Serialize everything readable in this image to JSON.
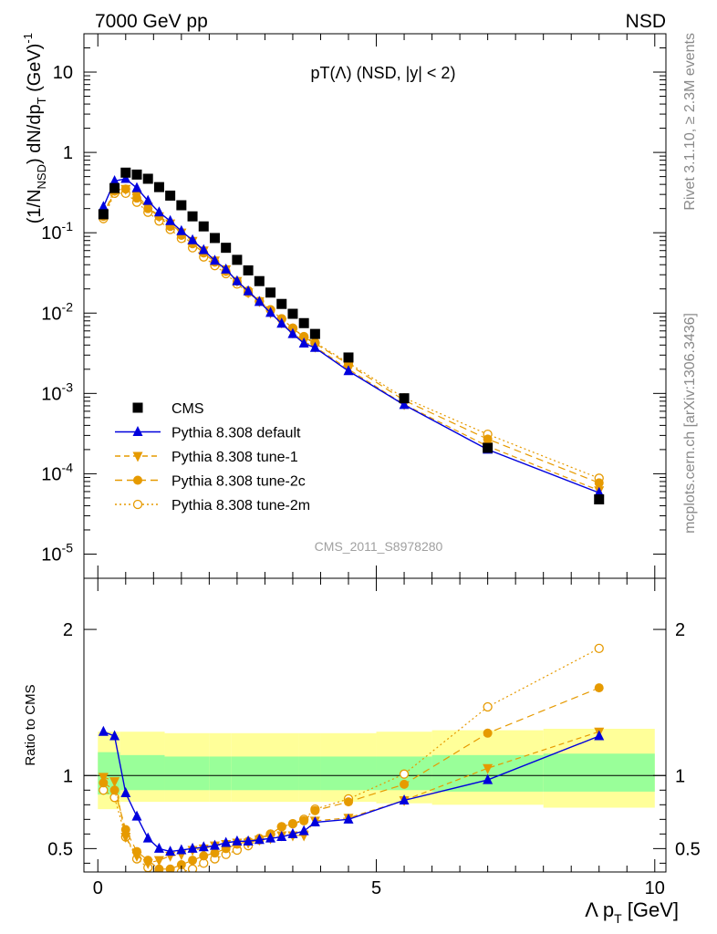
{
  "header": {
    "left": "7000 GeV pp",
    "right": "NSD",
    "plot_title": "pT(Λ) (NSD, |y| < 2)"
  },
  "side_text": {
    "rivet": "Rivet 3.1.10, ≥ 2.3M events",
    "mcplots": "mcplots.cern.ch [arXiv:1306.3436]"
  },
  "watermark": "CMS_2011_S8978280",
  "colors": {
    "cms": "#000000",
    "default": "#0000dd",
    "tunes": "#e69a00",
    "band_inner": "#99ff99",
    "band_outer": "#ffff99"
  },
  "chart_data": [
    {
      "type": "scatter",
      "title": "pT(Λ) (NSD, |y| < 2)",
      "xlabel": "Λ p_T [GeV]",
      "ylabel": "(1/N_NSD) dN/dp_T (GeV)^-1",
      "xlim": [
        -0.25,
        10.2
      ],
      "ylim": [
        5e-06,
        30
      ],
      "yscale": "log",
      "y_ticks": [
        "10^-5",
        "10^-4",
        "10^-3",
        "10^-2",
        "10^-1",
        "1",
        "10"
      ],
      "x_ticks": [
        "0",
        "5",
        "10"
      ],
      "legend_placement": "lower-left",
      "x": [
        0.1,
        0.3,
        0.5,
        0.7,
        0.9,
        1.1,
        1.3,
        1.5,
        1.7,
        1.9,
        2.1,
        2.3,
        2.5,
        2.7,
        2.9,
        3.1,
        3.3,
        3.5,
        3.7,
        3.9,
        4.5,
        5.5,
        7.0,
        9.0
      ],
      "series": [
        {
          "name": "CMS",
          "marker": "square",
          "values": [
            0.17,
            0.36,
            0.56,
            0.53,
            0.47,
            0.37,
            0.29,
            0.22,
            0.16,
            0.12,
            0.086,
            0.065,
            0.046,
            0.034,
            0.025,
            0.018,
            0.013,
            0.0098,
            0.0075,
            0.0055,
            0.0028,
            0.00087,
            0.00021,
            4.8e-05
          ]
        },
        {
          "name": "Pythia 8.308 default",
          "marker": "triangle-up",
          "values": [
            0.21,
            0.44,
            0.47,
            0.36,
            0.25,
            0.18,
            0.14,
            0.105,
            0.081,
            0.061,
            0.045,
            0.035,
            0.025,
            0.0187,
            0.0138,
            0.0101,
            0.0074,
            0.0055,
            0.0042,
            0.0037,
            0.0019,
            0.00072,
            0.0002,
            5.8e-05
          ]
        },
        {
          "name": "Pythia 8.308 tune-1",
          "marker": "triangle-down",
          "values": [
            0.17,
            0.34,
            0.35,
            0.29,
            0.21,
            0.16,
            0.13,
            0.1,
            0.079,
            0.06,
            0.045,
            0.035,
            0.025,
            0.018,
            0.014,
            0.0101,
            0.0076,
            0.0057,
            0.0044,
            0.0038,
            0.002,
            0.00073,
            0.00022,
            6.2e-05
          ]
        },
        {
          "name": "Pythia 8.308 tune-2c",
          "marker": "circle",
          "values": [
            0.16,
            0.33,
            0.35,
            0.27,
            0.2,
            0.16,
            0.12,
            0.093,
            0.073,
            0.056,
            0.043,
            0.033,
            0.025,
            0.019,
            0.014,
            0.011,
            0.0085,
            0.0065,
            0.005,
            0.0042,
            0.0023,
            0.00082,
            0.00027,
            7.7e-05
          ]
        },
        {
          "name": "Pythia 8.308 tune-2m",
          "marker": "open-circle",
          "values": [
            0.15,
            0.31,
            0.31,
            0.24,
            0.18,
            0.14,
            0.11,
            0.085,
            0.065,
            0.05,
            0.039,
            0.031,
            0.023,
            0.018,
            0.014,
            0.011,
            0.0085,
            0.0065,
            0.0051,
            0.0043,
            0.0024,
            0.00088,
            0.00031,
            8.8e-05
          ]
        }
      ]
    },
    {
      "type": "line",
      "ylabel": "Ratio to CMS",
      "xlim": [
        -0.25,
        10.2
      ],
      "ylim": [
        0.34,
        2.35
      ],
      "y_ticks": [
        "0.5",
        "1",
        "2"
      ],
      "band_edges": [
        0,
        0.4,
        1.2,
        2.0,
        2.4,
        3.6,
        4.0,
        5.0,
        6.0,
        8.0,
        10.0
      ],
      "band_inner": [
        [
          0.87,
          1.16
        ],
        [
          0.9,
          1.14
        ],
        [
          0.9,
          1.13
        ],
        [
          0.9,
          1.13
        ],
        [
          0.9,
          1.13
        ],
        [
          0.9,
          1.13
        ],
        [
          0.9,
          1.13
        ],
        [
          0.9,
          1.13
        ],
        [
          0.89,
          1.14
        ],
        [
          0.89,
          1.15
        ]
      ],
      "band_outer": [
        [
          0.77,
          1.3
        ],
        [
          0.82,
          1.3
        ],
        [
          0.82,
          1.29
        ],
        [
          0.82,
          1.29
        ],
        [
          0.82,
          1.29
        ],
        [
          0.82,
          1.29
        ],
        [
          0.82,
          1.29
        ],
        [
          0.81,
          1.3
        ],
        [
          0.8,
          1.31
        ],
        [
          0.78,
          1.32
        ]
      ],
      "x": [
        0.1,
        0.3,
        0.5,
        0.7,
        0.9,
        1.1,
        1.3,
        1.5,
        1.7,
        1.9,
        2.1,
        2.3,
        2.5,
        2.7,
        2.9,
        3.1,
        3.3,
        3.5,
        3.7,
        3.9,
        4.5,
        5.5,
        7.0,
        9.0
      ],
      "series": [
        {
          "name": "Pythia 8.308 default",
          "values": [
            1.3,
            1.27,
            0.88,
            0.72,
            0.57,
            0.5,
            0.48,
            0.49,
            0.5,
            0.51,
            0.52,
            0.54,
            0.55,
            0.55,
            0.56,
            0.57,
            0.58,
            0.6,
            0.62,
            0.68,
            0.7,
            0.83,
            0.97,
            1.27
          ]
        },
        {
          "name": "Pythia 8.308 tune-1",
          "values": [
            0.99,
            0.96,
            0.58,
            0.45,
            0.4,
            0.42,
            0.45,
            0.46,
            0.49,
            0.5,
            0.52,
            0.53,
            0.54,
            0.54,
            0.56,
            0.57,
            0.59,
            0.59,
            0.59,
            0.69,
            0.71,
            0.83,
            1.05,
            1.3
          ]
        },
        {
          "name": "Pythia 8.308 tune-2c",
          "values": [
            0.95,
            0.9,
            0.63,
            0.48,
            0.42,
            0.36,
            0.36,
            0.39,
            0.42,
            0.45,
            0.47,
            0.5,
            0.53,
            0.55,
            0.57,
            0.6,
            0.65,
            0.67,
            0.69,
            0.76,
            0.82,
            0.94,
            1.29,
            1.6
          ]
        },
        {
          "name": "Pythia 8.308 tune-2m",
          "values": [
            0.9,
            0.85,
            0.58,
            0.43,
            0.37,
            0.33,
            0.32,
            0.34,
            0.36,
            0.4,
            0.43,
            0.46,
            0.49,
            0.52,
            0.56,
            0.6,
            0.65,
            0.67,
            0.7,
            0.77,
            0.84,
            1.01,
            1.47,
            1.87
          ]
        }
      ]
    }
  ]
}
